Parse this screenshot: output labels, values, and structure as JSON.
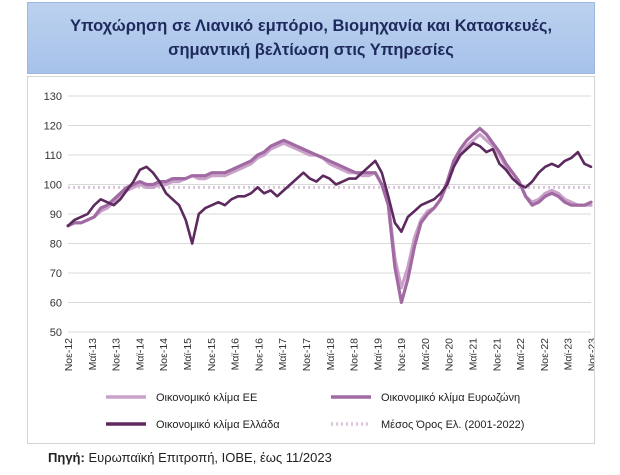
{
  "title": {
    "line1": "Υποχώρηση σε Λιανικό εμπόριο, Βιομηχανία και Κατασκευές,",
    "line2": "σημαντική βελτίωση στις Υπηρεσίες"
  },
  "source": {
    "label": "Πηγή:",
    "text": " Ευρωπαϊκή Επιτροπή, ΙΟΒΕ, έως 11/2023"
  },
  "chart_data": {
    "type": "line",
    "title": "Υποχώρηση σε Λιανικό εμπόριο, Βιομηχανία και Κατασκευές, σημαντική βελτίωση στις Υπηρεσίες",
    "xlabel": "",
    "ylabel": "",
    "ylim": [
      50,
      130
    ],
    "yticks": [
      50,
      60,
      70,
      80,
      90,
      100,
      110,
      120,
      130
    ],
    "xticks": [
      "Νοε-12",
      "Μαϊ-13",
      "Νοε-13",
      "Μαϊ-14",
      "Νοε-14",
      "Μαϊ-15",
      "Νοε-15",
      "Μαϊ-16",
      "Νοε-16",
      "Μαϊ-17",
      "Νοε-17",
      "Μαϊ-18",
      "Νοε-18",
      "Μαϊ-19",
      "Νοε-19",
      "Μαϊ-20",
      "Νοε-20",
      "Μαϊ-21",
      "Νοε-21",
      "Μαϊ-22",
      "Νοε-22",
      "Μαϊ-23",
      "Νοε-23"
    ],
    "grid": true,
    "legend_position": "bottom",
    "series": [
      {
        "name": "Οικονομικό κλίμα ΕΕ",
        "color": "#c8a2c8",
        "points": [
          [
            0,
            86
          ],
          [
            1,
            87
          ],
          [
            2,
            87
          ],
          [
            3,
            88
          ],
          [
            4,
            89
          ],
          [
            5,
            91
          ],
          [
            6,
            92
          ],
          [
            7,
            94
          ],
          [
            8,
            96
          ],
          [
            9,
            98
          ],
          [
            10,
            99
          ],
          [
            11,
            100
          ],
          [
            12,
            99
          ],
          [
            13,
            99
          ],
          [
            14,
            100
          ],
          [
            15,
            100
          ],
          [
            16,
            101
          ],
          [
            17,
            101
          ],
          [
            18,
            102
          ],
          [
            19,
            103
          ],
          [
            20,
            102
          ],
          [
            21,
            102
          ],
          [
            22,
            103
          ],
          [
            23,
            103
          ],
          [
            24,
            103
          ],
          [
            25,
            104
          ],
          [
            26,
            105
          ],
          [
            27,
            106
          ],
          [
            28,
            107
          ],
          [
            29,
            109
          ],
          [
            30,
            110
          ],
          [
            31,
            112
          ],
          [
            32,
            113
          ],
          [
            33,
            114
          ],
          [
            34,
            113
          ],
          [
            35,
            112
          ],
          [
            36,
            111
          ],
          [
            37,
            110
          ],
          [
            38,
            110
          ],
          [
            39,
            109
          ],
          [
            40,
            107
          ],
          [
            41,
            106
          ],
          [
            42,
            105
          ],
          [
            43,
            104
          ],
          [
            44,
            104
          ],
          [
            45,
            103
          ],
          [
            46,
            103
          ],
          [
            47,
            104
          ],
          [
            48,
            100
          ],
          [
            49,
            94
          ],
          [
            50,
            75
          ],
          [
            51,
            65
          ],
          [
            52,
            72
          ],
          [
            53,
            82
          ],
          [
            54,
            88
          ],
          [
            55,
            91
          ],
          [
            56,
            92
          ],
          [
            57,
            95
          ],
          [
            58,
            100
          ],
          [
            59,
            106
          ],
          [
            60,
            110
          ],
          [
            61,
            113
          ],
          [
            62,
            115
          ],
          [
            63,
            117
          ],
          [
            64,
            115
          ],
          [
            65,
            113
          ],
          [
            66,
            110
          ],
          [
            67,
            106
          ],
          [
            68,
            104
          ],
          [
            69,
            101
          ],
          [
            70,
            96
          ],
          [
            71,
            94
          ],
          [
            72,
            95
          ],
          [
            73,
            97
          ],
          [
            74,
            98
          ],
          [
            75,
            97
          ],
          [
            76,
            95
          ],
          [
            77,
            94
          ],
          [
            78,
            93
          ],
          [
            79,
            93
          ],
          [
            80,
            93
          ]
        ]
      },
      {
        "name": "Οικονομικό κλίμα Ευρωζώνη",
        "color": "#a26aa3",
        "points": [
          [
            0,
            86
          ],
          [
            1,
            87
          ],
          [
            2,
            87
          ],
          [
            3,
            88
          ],
          [
            4,
            89
          ],
          [
            5,
            92
          ],
          [
            6,
            93
          ],
          [
            7,
            95
          ],
          [
            8,
            97
          ],
          [
            9,
            99
          ],
          [
            10,
            100
          ],
          [
            11,
            101
          ],
          [
            12,
            100
          ],
          [
            13,
            100
          ],
          [
            14,
            101
          ],
          [
            15,
            101
          ],
          [
            16,
            102
          ],
          [
            17,
            102
          ],
          [
            18,
            102
          ],
          [
            19,
            103
          ],
          [
            20,
            103
          ],
          [
            21,
            103
          ],
          [
            22,
            104
          ],
          [
            23,
            104
          ],
          [
            24,
            104
          ],
          [
            25,
            105
          ],
          [
            26,
            106
          ],
          [
            27,
            107
          ],
          [
            28,
            108
          ],
          [
            29,
            110
          ],
          [
            30,
            111
          ],
          [
            31,
            113
          ],
          [
            32,
            114
          ],
          [
            33,
            115
          ],
          [
            34,
            114
          ],
          [
            35,
            113
          ],
          [
            36,
            112
          ],
          [
            37,
            111
          ],
          [
            38,
            110
          ],
          [
            39,
            109
          ],
          [
            40,
            108
          ],
          [
            41,
            107
          ],
          [
            42,
            106
          ],
          [
            43,
            105
          ],
          [
            44,
            104
          ],
          [
            45,
            104
          ],
          [
            46,
            104
          ],
          [
            47,
            104
          ],
          [
            48,
            100
          ],
          [
            49,
            93
          ],
          [
            50,
            72
          ],
          [
            51,
            60
          ],
          [
            52,
            68
          ],
          [
            53,
            79
          ],
          [
            54,
            87
          ],
          [
            55,
            90
          ],
          [
            56,
            92
          ],
          [
            57,
            95
          ],
          [
            58,
            101
          ],
          [
            59,
            108
          ],
          [
            60,
            112
          ],
          [
            61,
            115
          ],
          [
            62,
            117
          ],
          [
            63,
            119
          ],
          [
            64,
            117
          ],
          [
            65,
            114
          ],
          [
            66,
            111
          ],
          [
            67,
            107
          ],
          [
            68,
            104
          ],
          [
            69,
            101
          ],
          [
            70,
            96
          ],
          [
            71,
            93
          ],
          [
            72,
            94
          ],
          [
            73,
            96
          ],
          [
            74,
            97
          ],
          [
            75,
            96
          ],
          [
            76,
            94
          ],
          [
            77,
            93
          ],
          [
            78,
            93
          ],
          [
            79,
            93
          ],
          [
            80,
            94
          ]
        ]
      },
      {
        "name": "Οικονομικό κλίμα Ελλάδα",
        "color": "#5c2a5e",
        "points": [
          [
            0,
            86
          ],
          [
            1,
            88
          ],
          [
            2,
            89
          ],
          [
            3,
            90
          ],
          [
            4,
            93
          ],
          [
            5,
            95
          ],
          [
            6,
            94
          ],
          [
            7,
            93
          ],
          [
            8,
            95
          ],
          [
            9,
            98
          ],
          [
            10,
            101
          ],
          [
            11,
            105
          ],
          [
            12,
            106
          ],
          [
            13,
            104
          ],
          [
            14,
            101
          ],
          [
            15,
            97
          ],
          [
            16,
            95
          ],
          [
            17,
            93
          ],
          [
            18,
            88
          ],
          [
            19,
            80
          ],
          [
            20,
            90
          ],
          [
            21,
            92
          ],
          [
            22,
            93
          ],
          [
            23,
            94
          ],
          [
            24,
            93
          ],
          [
            25,
            95
          ],
          [
            26,
            96
          ],
          [
            27,
            96
          ],
          [
            28,
            97
          ],
          [
            29,
            99
          ],
          [
            30,
            97
          ],
          [
            31,
            98
          ],
          [
            32,
            96
          ],
          [
            33,
            98
          ],
          [
            34,
            100
          ],
          [
            35,
            102
          ],
          [
            36,
            104
          ],
          [
            37,
            102
          ],
          [
            38,
            101
          ],
          [
            39,
            103
          ],
          [
            40,
            102
          ],
          [
            41,
            100
          ],
          [
            42,
            101
          ],
          [
            43,
            102
          ],
          [
            44,
            102
          ],
          [
            45,
            104
          ],
          [
            46,
            106
          ],
          [
            47,
            108
          ],
          [
            48,
            104
          ],
          [
            49,
            96
          ],
          [
            50,
            87
          ],
          [
            51,
            84
          ],
          [
            52,
            89
          ],
          [
            53,
            91
          ],
          [
            54,
            93
          ],
          [
            55,
            94
          ],
          [
            56,
            95
          ],
          [
            57,
            97
          ],
          [
            58,
            100
          ],
          [
            59,
            106
          ],
          [
            60,
            110
          ],
          [
            61,
            112
          ],
          [
            62,
            114
          ],
          [
            63,
            113
          ],
          [
            64,
            111
          ],
          [
            65,
            112
          ],
          [
            66,
            107
          ],
          [
            67,
            105
          ],
          [
            68,
            102
          ],
          [
            69,
            100
          ],
          [
            70,
            99
          ],
          [
            71,
            101
          ],
          [
            72,
            104
          ],
          [
            73,
            106
          ],
          [
            74,
            107
          ],
          [
            75,
            106
          ],
          [
            76,
            108
          ],
          [
            77,
            109
          ],
          [
            78,
            111
          ],
          [
            79,
            107
          ],
          [
            80,
            106
          ]
        ]
      },
      {
        "name": "Μέσος Όρος Ελ. (2001-2022)",
        "color": "#d9c6d9",
        "style": "dotted",
        "points": [
          [
            0,
            99
          ],
          [
            80,
            99
          ]
        ]
      }
    ]
  }
}
